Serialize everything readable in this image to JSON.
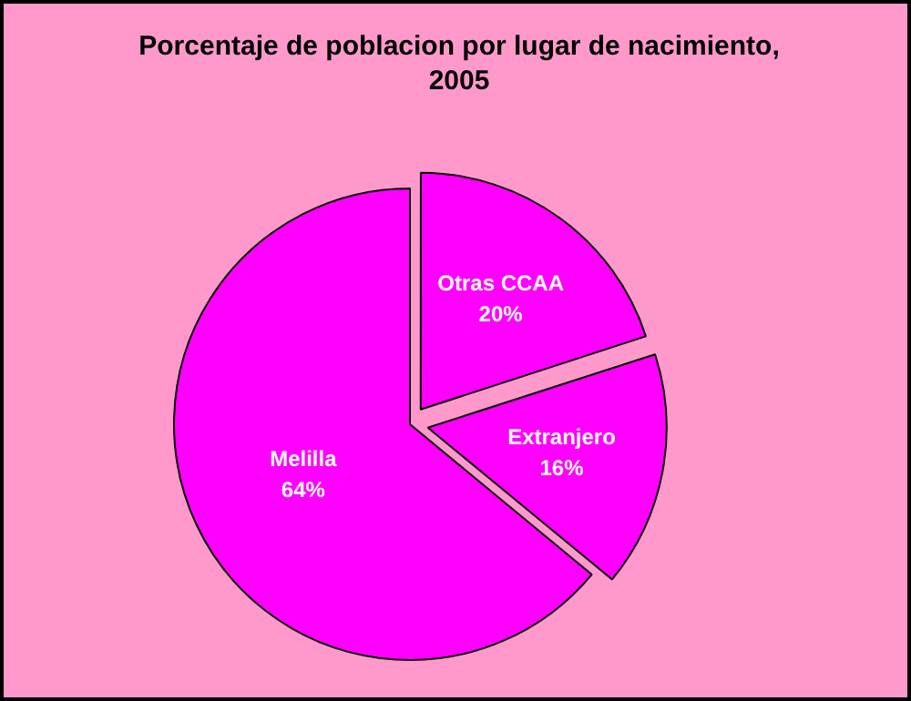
{
  "chart_data": {
    "type": "pie",
    "title": "Porcentaje de poblacion por lugar de nacimiento, 2005",
    "categories": [
      "Otras CCAA",
      "Extranjero",
      "Melilla"
    ],
    "values": [
      20,
      16,
      64
    ],
    "colors": [
      "#ff00ff",
      "#ff00ff",
      "#ff00ff"
    ],
    "value_labels": [
      "20%",
      "16%",
      "64%"
    ],
    "legend": false
  }
}
